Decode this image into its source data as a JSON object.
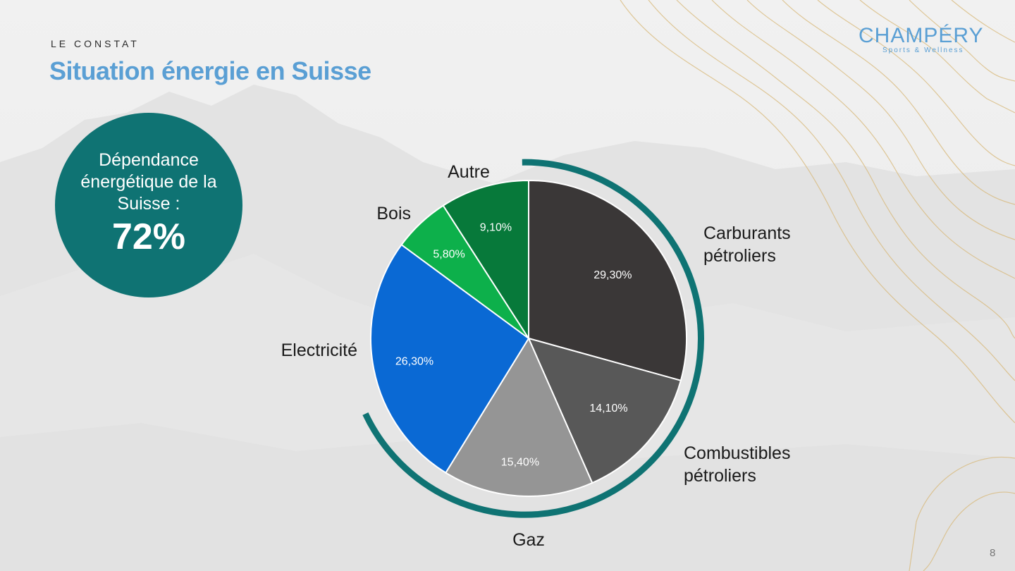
{
  "header": {
    "eyebrow": "LE CONSTAT",
    "title": "Situation énergie en Suisse"
  },
  "logo": {
    "name": "CHAMPÉRY",
    "tagline": "Sports & Wellness"
  },
  "badge": {
    "text": "Dépendance énergétique de la Suisse :",
    "value": "72%"
  },
  "page_number": "8",
  "colors": {
    "accent": "#0f7373",
    "title": "#5a9fd4",
    "contour": "#d8b878"
  },
  "chart_data": {
    "type": "pie",
    "title": "",
    "slices": [
      {
        "label": "Carburants pétroliers",
        "value": 29.3,
        "value_label": "29,30%",
        "color": "#3a3737"
      },
      {
        "label": "Combustibles pétroliers",
        "value": 14.1,
        "value_label": "14,10%",
        "color": "#585858"
      },
      {
        "label": "Gaz",
        "value": 15.4,
        "value_label": "15,40%",
        "color": "#959595"
      },
      {
        "label": "Electricité",
        "value": 26.3,
        "value_label": "26,30%",
        "color": "#0a69d4"
      },
      {
        "label": "Bois",
        "value": 5.8,
        "value_label": "5,80%",
        "color": "#0db04b"
      },
      {
        "label": "Autre",
        "value": 9.1,
        "value_label": "9,10%",
        "color": "#07793a"
      }
    ]
  }
}
